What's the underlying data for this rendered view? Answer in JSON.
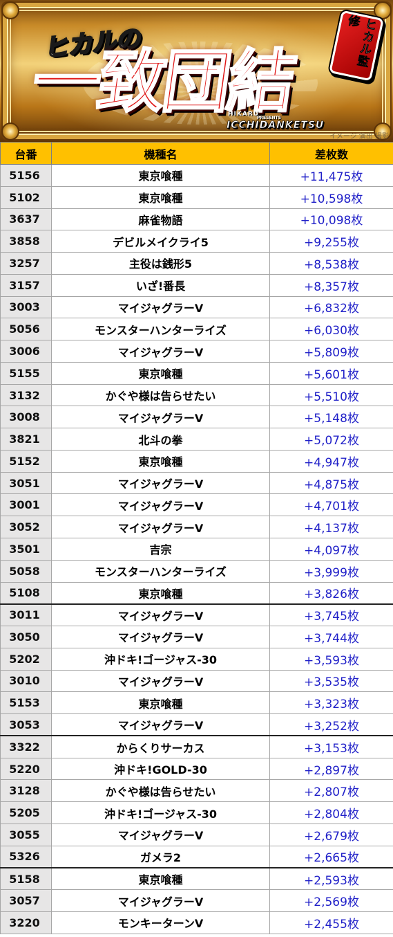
{
  "banner": {
    "small_title": "ヒカルの",
    "big_title": "一致団結",
    "badge": "ヒカル監修",
    "sub_en": "HIKARU",
    "sub_presents": "PRESENTS",
    "sub_en2": "ICCHIDANKETSU",
    "caption": "イメージ 演出 撮影"
  },
  "colors": {
    "header_bg": "#ffc000",
    "num_bg": "#e7e6e6",
    "diff_text": "#1f1fc8",
    "title_red": "#e01818"
  },
  "table": {
    "headers": [
      "台番",
      "機種名",
      "差枚数"
    ],
    "rows": [
      [
        "5156",
        "東京喰種",
        "+11,475枚"
      ],
      [
        "5102",
        "東京喰種",
        "+10,598枚"
      ],
      [
        "3637",
        "麻雀物語",
        "+10,098枚"
      ],
      [
        "3858",
        "デビルメイクライ5",
        "+9,255枚"
      ],
      [
        "3257",
        "主役は銭形5",
        "+8,538枚"
      ],
      [
        "3157",
        "いざ!番長",
        "+8,357枚"
      ],
      [
        "3003",
        "マイジャグラーV",
        "+6,832枚"
      ],
      [
        "5056",
        "モンスターハンターライズ",
        "+6,030枚"
      ],
      [
        "3006",
        "マイジャグラーV",
        "+5,809枚"
      ],
      [
        "5155",
        "東京喰種",
        "+5,601枚"
      ],
      [
        "3132",
        "かぐや様は告らせたい",
        "+5,510枚"
      ],
      [
        "3008",
        "マイジャグラーV",
        "+5,148枚"
      ],
      [
        "3821",
        "北斗の拳",
        "+5,072枚"
      ],
      [
        "5152",
        "東京喰種",
        "+4,947枚"
      ],
      [
        "3051",
        "マイジャグラーV",
        "+4,875枚"
      ],
      [
        "3001",
        "マイジャグラーV",
        "+4,701枚"
      ],
      [
        "3052",
        "マイジャグラーV",
        "+4,137枚"
      ],
      [
        "3501",
        "吉宗",
        "+4,097枚"
      ],
      [
        "5058",
        "モンスターハンターライズ",
        "+3,999枚"
      ],
      [
        "5108",
        "東京喰種",
        "+3,826枚"
      ],
      [
        "3011",
        "マイジャグラーV",
        "+3,745枚"
      ],
      [
        "3050",
        "マイジャグラーV",
        "+3,744枚"
      ],
      [
        "5202",
        "沖ドキ!ゴージャス-30",
        "+3,593枚"
      ],
      [
        "3010",
        "マイジャグラーV",
        "+3,535枚"
      ],
      [
        "5153",
        "東京喰種",
        "+3,323枚"
      ],
      [
        "3053",
        "マイジャグラーV",
        "+3,252枚"
      ],
      [
        "3322",
        "からくりサーカス",
        "+3,153枚"
      ],
      [
        "5220",
        "沖ドキ!GOLD-30",
        "+2,897枚"
      ],
      [
        "3128",
        "かぐや様は告らせたい",
        "+2,807枚"
      ],
      [
        "5205",
        "沖ドキ!ゴージャス-30",
        "+2,804枚"
      ],
      [
        "3055",
        "マイジャグラーV",
        "+2,679枚"
      ],
      [
        "5326",
        "ガメラ2",
        "+2,665枚"
      ],
      [
        "5158",
        "東京喰種",
        "+2,593枚"
      ],
      [
        "3057",
        "マイジャグラーV",
        "+2,569枚"
      ],
      [
        "3220",
        "モンキーターンV",
        "+2,455枚"
      ]
    ]
  }
}
